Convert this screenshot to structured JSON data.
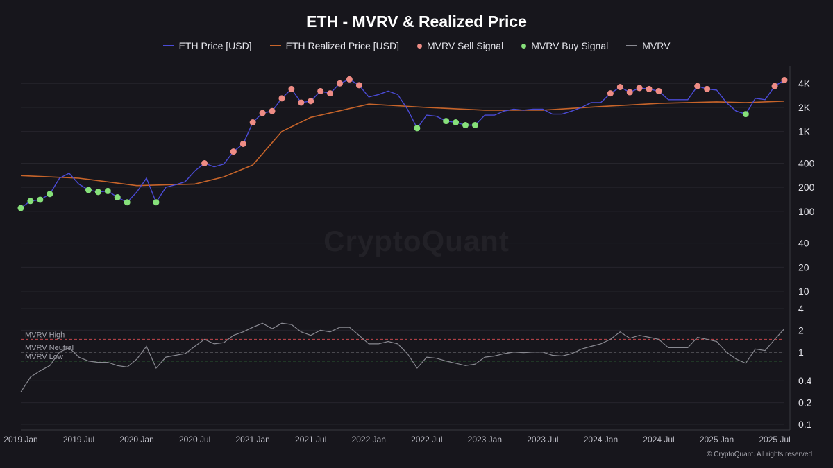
{
  "chart_data": {
    "type": "line",
    "title": "ETH - MVRV & Realized Price",
    "watermark": "CryptoQuant",
    "copyright": "© CryptoQuant. All rights reserved",
    "legend": [
      {
        "name": "ETH Price [USD]",
        "color": "#4b4bd6",
        "kind": "line"
      },
      {
        "name": "ETH Realized Price [USD]",
        "color": "#c7642a",
        "kind": "line"
      },
      {
        "name": "MVRV Sell Signal",
        "color": "#ee8c85",
        "kind": "dot"
      },
      {
        "name": "MVRV Buy Signal",
        "color": "#86e07a",
        "kind": "dot"
      },
      {
        "name": "MVRV",
        "color": "#8a8a92",
        "kind": "line"
      }
    ],
    "x_ticks": [
      "2019 Jan",
      "2019 Jul",
      "2020 Jan",
      "2020 Jul",
      "2021 Jan",
      "2021 Jul",
      "2022 Jan",
      "2022 Jul",
      "2023 Jan",
      "2023 Jul",
      "2024 Jan",
      "2024 Jul",
      "2025 Jan",
      "2025 Jul"
    ],
    "x_range": [
      "2019-01",
      "2025-08"
    ],
    "price_axis": {
      "scale": "log",
      "ylim": [
        10,
        6000
      ],
      "ticks": [
        "4K",
        "2K",
        "1K",
        "400",
        "200",
        "100",
        "40",
        "20",
        "10"
      ]
    },
    "mvrv_axis": {
      "scale": "log",
      "ylim": [
        0.1,
        4
      ],
      "ticks": [
        "4",
        "2",
        "1",
        "0.4",
        "0.2",
        "0.1"
      ]
    },
    "reference_lines": [
      {
        "label": "MVRV High",
        "value": 1.5,
        "color": "#c4474b"
      },
      {
        "label": "MVRV Neutral",
        "value": 1.0,
        "color": "#d8d8dc"
      },
      {
        "label": "MVRV Low",
        "value": 0.75,
        "color": "#3f9a45"
      }
    ],
    "series": [
      {
        "name": "ETH Price [USD]",
        "x": [
          "2019-01",
          "2019-02",
          "2019-03",
          "2019-04",
          "2019-05",
          "2019-06",
          "2019-07",
          "2019-08",
          "2019-09",
          "2019-10",
          "2019-11",
          "2019-12",
          "2020-01",
          "2020-02",
          "2020-03",
          "2020-04",
          "2020-05",
          "2020-06",
          "2020-07",
          "2020-08",
          "2020-09",
          "2020-10",
          "2020-11",
          "2020-12",
          "2021-01",
          "2021-02",
          "2021-03",
          "2021-04",
          "2021-05",
          "2021-06",
          "2021-07",
          "2021-08",
          "2021-09",
          "2021-10",
          "2021-11",
          "2021-12",
          "2022-01",
          "2022-02",
          "2022-03",
          "2022-04",
          "2022-05",
          "2022-06",
          "2022-07",
          "2022-08",
          "2022-09",
          "2022-10",
          "2022-11",
          "2022-12",
          "2023-01",
          "2023-02",
          "2023-03",
          "2023-04",
          "2023-05",
          "2023-06",
          "2023-07",
          "2023-08",
          "2023-09",
          "2023-10",
          "2023-11",
          "2023-12",
          "2024-01",
          "2024-02",
          "2024-03",
          "2024-04",
          "2024-05",
          "2024-06",
          "2024-07",
          "2024-08",
          "2024-09",
          "2024-10",
          "2024-11",
          "2024-12",
          "2025-01",
          "2025-02",
          "2025-03",
          "2025-04",
          "2025-05",
          "2025-06",
          "2025-07",
          "2025-08"
        ],
        "values": [
          110,
          135,
          140,
          165,
          260,
          300,
          220,
          185,
          175,
          180,
          150,
          130,
          175,
          260,
          130,
          200,
          215,
          235,
          320,
          400,
          360,
          390,
          560,
          700,
          1300,
          1700,
          1800,
          2600,
          3400,
          2300,
          2400,
          3200,
          3000,
          4000,
          4500,
          3800,
          2700,
          2900,
          3200,
          2900,
          1900,
          1100,
          1600,
          1550,
          1350,
          1300,
          1200,
          1200,
          1600,
          1600,
          1800,
          1900,
          1850,
          1900,
          1900,
          1650,
          1650,
          1800,
          2000,
          2300,
          2300,
          3000,
          3600,
          3100,
          3500,
          3400,
          3200,
          2500,
          2500,
          2500,
          3700,
          3400,
          3300,
          2300,
          1800,
          1650,
          2600,
          2500,
          3700,
          4400
        ]
      },
      {
        "name": "ETH Realized Price [USD]",
        "x": [
          "2019-01",
          "2019-07",
          "2020-01",
          "2020-07",
          "2020-10",
          "2021-01",
          "2021-04",
          "2021-07",
          "2022-01",
          "2022-07",
          "2023-01",
          "2023-07",
          "2024-01",
          "2024-07",
          "2025-01",
          "2025-04",
          "2025-08"
        ],
        "values": [
          280,
          260,
          210,
          220,
          270,
          380,
          1000,
          1500,
          2200,
          2000,
          1850,
          1850,
          2050,
          2250,
          2350,
          2300,
          2400
        ]
      },
      {
        "name": "MVRV",
        "x": [
          "2019-01",
          "2019-02",
          "2019-03",
          "2019-04",
          "2019-05",
          "2019-06",
          "2019-07",
          "2019-08",
          "2019-09",
          "2019-10",
          "2019-11",
          "2019-12",
          "2020-01",
          "2020-02",
          "2020-03",
          "2020-04",
          "2020-05",
          "2020-06",
          "2020-07",
          "2020-08",
          "2020-09",
          "2020-10",
          "2020-11",
          "2020-12",
          "2021-01",
          "2021-02",
          "2021-03",
          "2021-04",
          "2021-05",
          "2021-06",
          "2021-07",
          "2021-08",
          "2021-09",
          "2021-10",
          "2021-11",
          "2021-12",
          "2022-01",
          "2022-02",
          "2022-03",
          "2022-04",
          "2022-05",
          "2022-06",
          "2022-07",
          "2022-08",
          "2022-09",
          "2022-10",
          "2022-11",
          "2022-12",
          "2023-01",
          "2023-02",
          "2023-03",
          "2023-04",
          "2023-05",
          "2023-06",
          "2023-07",
          "2023-08",
          "2023-09",
          "2023-10",
          "2023-11",
          "2023-12",
          "2024-01",
          "2024-02",
          "2024-03",
          "2024-04",
          "2024-05",
          "2024-06",
          "2024-07",
          "2024-08",
          "2024-09",
          "2024-10",
          "2024-11",
          "2024-12",
          "2025-01",
          "2025-02",
          "2025-03",
          "2025-04",
          "2025-05",
          "2025-06",
          "2025-07",
          "2025-08"
        ],
        "values": [
          0.28,
          0.45,
          0.55,
          0.65,
          1.0,
          1.15,
          0.85,
          0.75,
          0.72,
          0.72,
          0.65,
          0.62,
          0.8,
          1.2,
          0.6,
          0.85,
          0.9,
          0.95,
          1.2,
          1.5,
          1.3,
          1.35,
          1.7,
          1.9,
          2.2,
          2.5,
          2.1,
          2.5,
          2.4,
          1.9,
          1.7,
          2.0,
          1.9,
          2.2,
          2.2,
          1.7,
          1.3,
          1.3,
          1.4,
          1.3,
          0.95,
          0.6,
          0.85,
          0.82,
          0.75,
          0.7,
          0.65,
          0.68,
          0.85,
          0.88,
          0.95,
          1.0,
          0.98,
          1.0,
          1.0,
          0.9,
          0.88,
          0.95,
          1.1,
          1.2,
          1.3,
          1.5,
          1.9,
          1.55,
          1.7,
          1.6,
          1.5,
          1.15,
          1.15,
          1.15,
          1.6,
          1.5,
          1.4,
          1.0,
          0.8,
          0.7,
          1.1,
          1.05,
          1.5,
          2.1
        ]
      }
    ]
  }
}
